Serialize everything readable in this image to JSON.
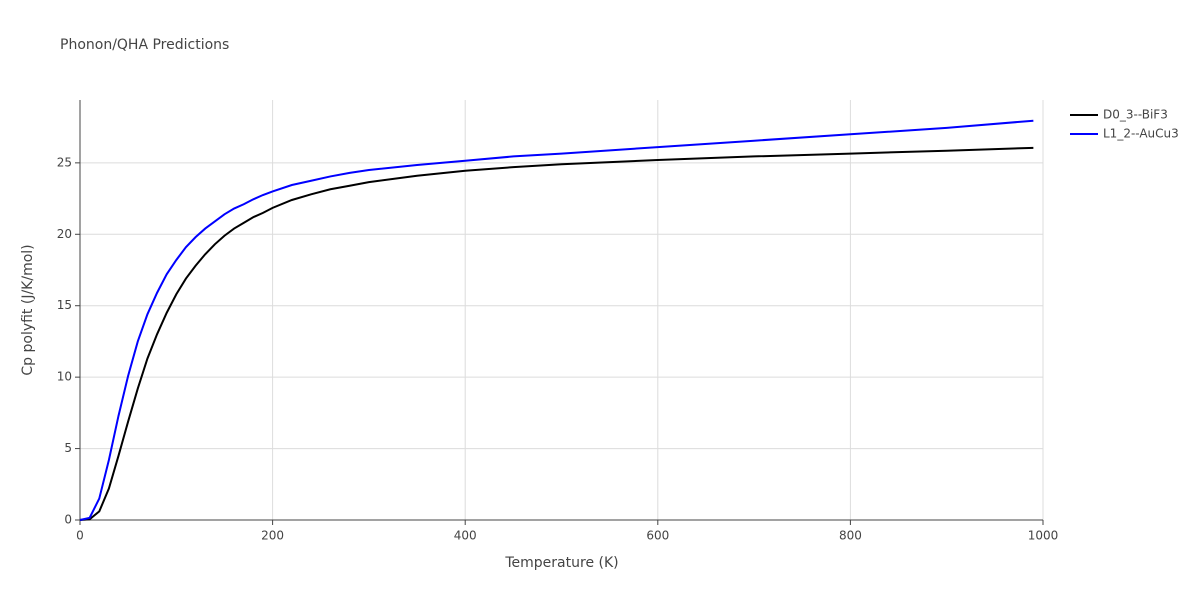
{
  "chart_data": {
    "type": "line",
    "title": "Phonon/QHA Predictions",
    "x_label": "Temperature (K)",
    "y_label": "Cp polyfit (J/K/mol)",
    "x": [
      0,
      10,
      20,
      30,
      40,
      50,
      60,
      70,
      80,
      90,
      100,
      110,
      120,
      130,
      140,
      150,
      160,
      170,
      180,
      190,
      200,
      220,
      240,
      260,
      280,
      300,
      350,
      400,
      450,
      500,
      600,
      700,
      800,
      900,
      990
    ],
    "series": [
      {
        "name": "D0_3--BiF3",
        "color": "#000000",
        "values": [
          0,
          0.05,
          0.6,
          2.2,
          4.5,
          6.9,
          9.2,
          11.3,
          13.0,
          14.5,
          15.8,
          16.9,
          17.8,
          18.6,
          19.3,
          19.9,
          20.4,
          20.8,
          21.2,
          21.5,
          21.85,
          22.4,
          22.8,
          23.15,
          23.4,
          23.65,
          24.1,
          24.45,
          24.7,
          24.9,
          25.2,
          25.45,
          25.65,
          25.85,
          26.05
        ]
      },
      {
        "name": "L1_2--AuCu3",
        "color": "#0000ff",
        "values": [
          0,
          0.15,
          1.5,
          4.2,
          7.3,
          10.1,
          12.5,
          14.4,
          15.9,
          17.2,
          18.2,
          19.1,
          19.8,
          20.4,
          20.9,
          21.4,
          21.8,
          22.1,
          22.45,
          22.75,
          23.0,
          23.45,
          23.75,
          24.05,
          24.3,
          24.5,
          24.85,
          25.15,
          25.45,
          25.65,
          26.1,
          26.55,
          27.0,
          27.45,
          27.95
        ]
      }
    ],
    "xlim": [
      0,
      1000
    ],
    "xticks": [
      0,
      200,
      400,
      600,
      800,
      1000
    ],
    "ylim": [
      0,
      29.4
    ],
    "yticks": [
      0,
      5,
      10,
      15,
      20,
      25
    ],
    "grid": true,
    "legend": "top-right"
  }
}
